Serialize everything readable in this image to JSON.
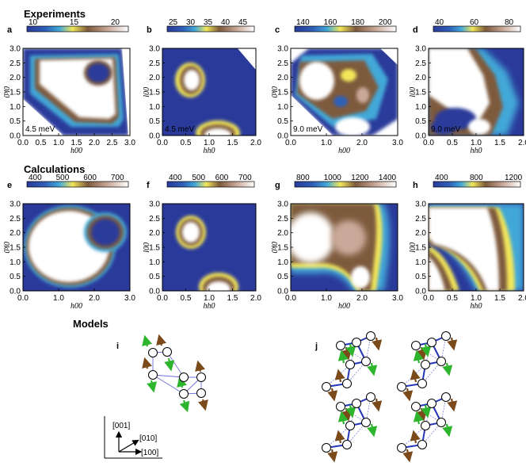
{
  "sections": {
    "experiments": "Experiments",
    "calculations": "Calculations",
    "models": "Models"
  },
  "colormap": [
    "#2a3a9a",
    "#2f5fb8",
    "#43a8d8",
    "#f2e65a",
    "#7e5a3c",
    "#caa99a",
    "#ffffff"
  ],
  "chart_data": [
    {
      "type": "heatmap",
      "panel": "a",
      "energy": "4.5 meV",
      "cbar_ticks": [
        "10",
        "15",
        "20"
      ],
      "xlabel": "h00",
      "ylabel": "0k0",
      "xlim": [
        0,
        3
      ],
      "ylim": [
        0,
        3
      ],
      "xticks": [
        "0.0",
        "0.5",
        "1.0",
        "1.5",
        "2.0",
        "2.5",
        "3.0"
      ],
      "yticks": [
        "0.0",
        "0.5",
        "1.0",
        "1.5",
        "2.0",
        "2.5",
        "3.0"
      ]
    },
    {
      "type": "heatmap",
      "panel": "b",
      "energy": "4.5 meV",
      "cbar_ticks": [
        "25",
        "30",
        "35",
        "40",
        "45"
      ],
      "xlabel": "hh0",
      "ylabel": "00l",
      "xlim": [
        0,
        2
      ],
      "ylim": [
        0,
        3
      ],
      "xticks": [
        "0.0",
        "0.5",
        "1.0",
        "1.5",
        "2.0"
      ],
      "yticks": [
        "0.0",
        "0.5",
        "1.0",
        "1.5",
        "2.0",
        "2.5",
        "3.0"
      ]
    },
    {
      "type": "heatmap",
      "panel": "c",
      "energy": "9.0 meV",
      "cbar_ticks": [
        "140",
        "160",
        "180",
        "200"
      ],
      "xlabel": "h00",
      "ylabel": "0k0",
      "xlim": [
        0,
        3
      ],
      "ylim": [
        0,
        3
      ],
      "xticks": [
        "0.0",
        "1.0",
        "2.0",
        "3.0"
      ],
      "yticks": [
        "0.0",
        "0.5",
        "1.0",
        "1.5",
        "2.0",
        "2.5",
        "3.0"
      ]
    },
    {
      "type": "heatmap",
      "panel": "d",
      "energy": "9.0 meV",
      "cbar_ticks": [
        "40",
        "60",
        "80"
      ],
      "xlabel": "hh0",
      "ylabel": "00l",
      "xlim": [
        0,
        2
      ],
      "ylim": [
        0,
        3
      ],
      "xticks": [
        "0.0",
        "0.5",
        "1.0",
        "1.5",
        "2.0"
      ],
      "yticks": [
        "0.0",
        "0.5",
        "1.0",
        "1.5",
        "2.0",
        "2.5",
        "3.0"
      ]
    },
    {
      "type": "heatmap",
      "panel": "e",
      "energy": "",
      "cbar_ticks": [
        "400",
        "500",
        "600",
        "700"
      ],
      "xlabel": "h00",
      "ylabel": "0k0",
      "xlim": [
        0,
        3
      ],
      "ylim": [
        0,
        3
      ],
      "xticks": [
        "0.0",
        "1.0",
        "2.0",
        "3.0"
      ],
      "yticks": [
        "0.0",
        "0.5",
        "1.0",
        "1.5",
        "2.0",
        "2.5",
        "3.0"
      ]
    },
    {
      "type": "heatmap",
      "panel": "f",
      "energy": "",
      "cbar_ticks": [
        "400",
        "500",
        "600",
        "700"
      ],
      "xlabel": "hh0",
      "ylabel": "00l",
      "xlim": [
        0,
        2
      ],
      "ylim": [
        0,
        3
      ],
      "xticks": [
        "0.0",
        "0.5",
        "1.0",
        "1.5",
        "2.0"
      ],
      "yticks": [
        "0.0",
        "0.5",
        "1.0",
        "1.5",
        "2.0",
        "2.5",
        "3.0"
      ]
    },
    {
      "type": "heatmap",
      "panel": "g",
      "energy": "",
      "cbar_ticks": [
        "800",
        "1000",
        "1200",
        "1400"
      ],
      "xlabel": "h00",
      "ylabel": "0k0",
      "xlim": [
        0,
        3
      ],
      "ylim": [
        0,
        3
      ],
      "xticks": [
        "0.0",
        "1.0",
        "2.0",
        "3.0"
      ],
      "yticks": [
        "0.0",
        "0.5",
        "1.0",
        "1.5",
        "2.0",
        "2.5",
        "3.0"
      ]
    },
    {
      "type": "heatmap",
      "panel": "h",
      "energy": "",
      "cbar_ticks": [
        "400",
        "800",
        "1200"
      ],
      "xlabel": "hh0",
      "ylabel": "00l",
      "xlim": [
        0,
        2
      ],
      "ylim": [
        0,
        3
      ],
      "xticks": [
        "0.0",
        "0.5",
        "1.0",
        "1.5",
        "2.0"
      ],
      "yticks": [
        "0.0",
        "0.5",
        "1.0",
        "1.5",
        "2.0",
        "2.5",
        "3.0"
      ]
    }
  ],
  "models": {
    "panel_i": "i",
    "panel_j": "j",
    "axes": [
      "[001]",
      "[010]",
      "[100]"
    ]
  }
}
